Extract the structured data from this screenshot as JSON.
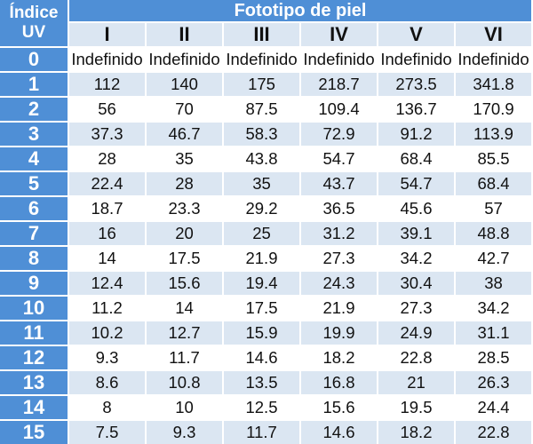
{
  "table": {
    "header_index_line1": "Índice",
    "header_index_line2": "UV",
    "header_group": "Fototipo de piel",
    "phototypes": [
      "I",
      "II",
      "III",
      "IV",
      "V",
      "VI"
    ],
    "rows": [
      {
        "uv": "0",
        "values": [
          "Indefinido",
          "Indefinido",
          "Indefinido",
          "Indefinido",
          "Indefinido",
          "Indefinido"
        ]
      },
      {
        "uv": "1",
        "values": [
          "112",
          "140",
          "175",
          "218.7",
          "273.5",
          "341.8"
        ]
      },
      {
        "uv": "2",
        "values": [
          "56",
          "70",
          "87.5",
          "109.4",
          "136.7",
          "170.9"
        ]
      },
      {
        "uv": "3",
        "values": [
          "37.3",
          "46.7",
          "58.3",
          "72.9",
          "91.2",
          "113.9"
        ]
      },
      {
        "uv": "4",
        "values": [
          "28",
          "35",
          "43.8",
          "54.7",
          "68.4",
          "85.5"
        ]
      },
      {
        "uv": "5",
        "values": [
          "22.4",
          "28",
          "35",
          "43.7",
          "54.7",
          "68.4"
        ]
      },
      {
        "uv": "6",
        "values": [
          "18.7",
          "23.3",
          "29.2",
          "36.5",
          "45.6",
          "57"
        ]
      },
      {
        "uv": "7",
        "values": [
          "16",
          "20",
          "25",
          "31.2",
          "39.1",
          "48.8"
        ]
      },
      {
        "uv": "8",
        "values": [
          "14",
          "17.5",
          "21.9",
          "27.3",
          "34.2",
          "42.7"
        ]
      },
      {
        "uv": "9",
        "values": [
          "12.4",
          "15.6",
          "19.4",
          "24.3",
          "30.4",
          "38"
        ]
      },
      {
        "uv": "10",
        "values": [
          "11.2",
          "14",
          "17.5",
          "21.9",
          "27.3",
          "34.2"
        ]
      },
      {
        "uv": "11",
        "values": [
          "10.2",
          "12.7",
          "15.9",
          "19.9",
          "24.9",
          "31.1"
        ]
      },
      {
        "uv": "12",
        "values": [
          "9.3",
          "11.7",
          "14.6",
          "18.2",
          "22.8",
          "28.5"
        ]
      },
      {
        "uv": "13",
        "values": [
          "8.6",
          "10.8",
          "13.5",
          "16.8",
          "21",
          "26.3"
        ]
      },
      {
        "uv": "14",
        "values": [
          "8",
          "10",
          "12.5",
          "15.6",
          "19.5",
          "24.4"
        ]
      },
      {
        "uv": "15",
        "values": [
          "7.5",
          "9.3",
          "11.7",
          "14.6",
          "18.2",
          "22.8"
        ]
      }
    ]
  },
  "colors": {
    "header_blue": "#4f8fd6",
    "row_light_blue": "#dbe6f2",
    "row_white": "#ffffff"
  }
}
